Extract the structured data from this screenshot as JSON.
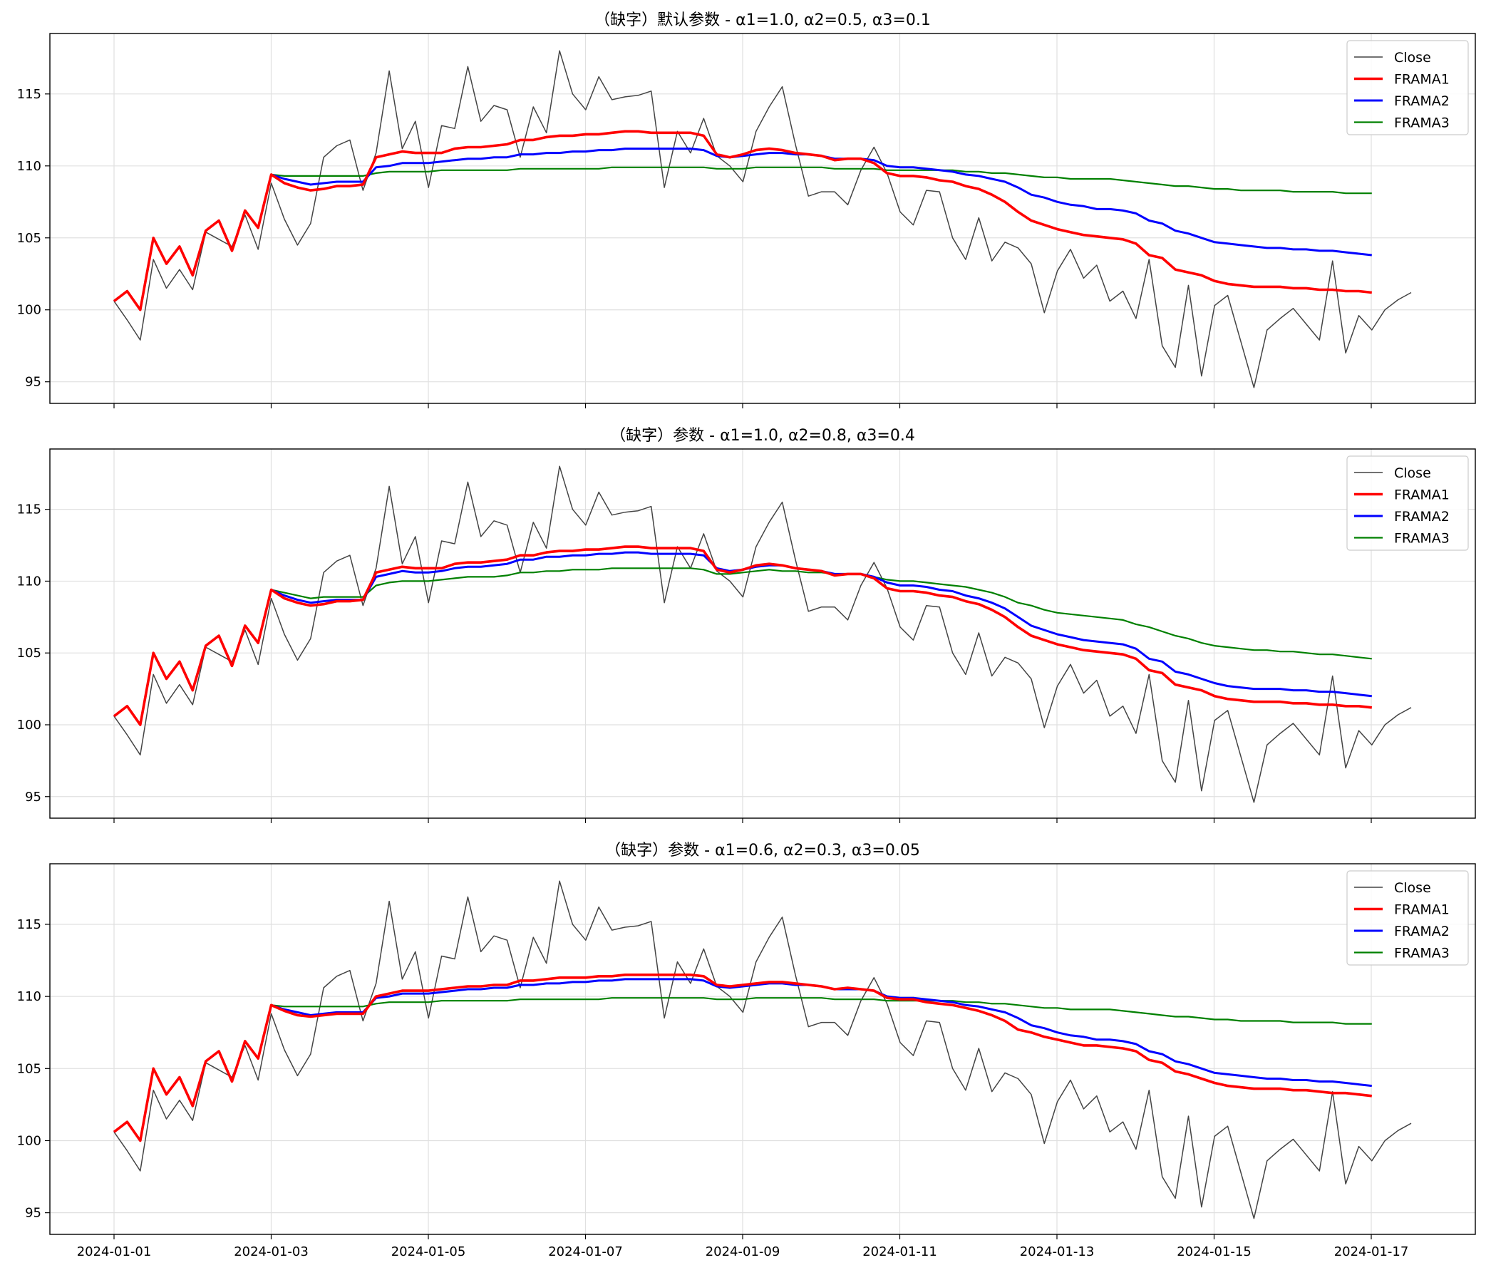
{
  "chart_data": [
    {
      "type": "line",
      "title": "（缺字）默认参数 - α1=1.0, α2=0.5, α3=0.1",
      "x_ticks": [
        "2024-01-01",
        "2024-01-03",
        "2024-01-05",
        "2024-01-07",
        "2024-01-09",
        "2024-01-11",
        "2024-01-13",
        "2024-01-15",
        "2024-01-17"
      ],
      "y_ticks": [
        95,
        100,
        105,
        110,
        115
      ],
      "ylim": [
        93.5,
        119.2
      ],
      "x_range": [
        "2024-01-01 00:00",
        "2024-01-17 12:00"
      ],
      "grid": true,
      "legend_placement": "top-right",
      "series": [
        {
          "name": "Close",
          "color": "#444444"
        },
        {
          "name": "FRAMA1",
          "color": "#ff0000"
        },
        {
          "name": "FRAMA2",
          "color": "#0000ff"
        },
        {
          "name": "FRAMA3",
          "color": "#008000"
        }
      ],
      "frama1_values": [
        100.6,
        101.3,
        100.0,
        105.0,
        103.2,
        104.4,
        102.4,
        105.5,
        106.2,
        104.1,
        106.9,
        105.7,
        109.4,
        108.8,
        108.5,
        108.3,
        108.4,
        108.6,
        108.6,
        108.7,
        110.6,
        110.8,
        111.0,
        110.9,
        110.9,
        110.9,
        111.2,
        111.3,
        111.3,
        111.4,
        111.5,
        111.8,
        111.8,
        112.0,
        112.1,
        112.1,
        112.2,
        112.2,
        112.3,
        112.4,
        112.4,
        112.3,
        112.3,
        112.3,
        112.3,
        112.1,
        110.8,
        110.6,
        110.8,
        111.1,
        111.2,
        111.1,
        110.9,
        110.8,
        110.7,
        110.4,
        110.5,
        110.5,
        110.2,
        109.5,
        109.3,
        109.3,
        109.2,
        109.0,
        108.9,
        108.6,
        108.4,
        108.0,
        107.5,
        106.8,
        106.2,
        105.9,
        105.6,
        105.4,
        105.2,
        105.1,
        105.0,
        104.9,
        104.6,
        103.8,
        103.6,
        102.8,
        102.6,
        102.4,
        102.0,
        101.8,
        101.7,
        101.6,
        101.6,
        101.6,
        101.5,
        101.5,
        101.4,
        101.4,
        101.3,
        101.3,
        101.2
      ]
    },
    {
      "type": "line",
      "title": "（缺字）参数 - α1=1.0, α2=0.8, α3=0.4",
      "x_ticks": [
        "2024-01-01",
        "2024-01-03",
        "2024-01-05",
        "2024-01-07",
        "2024-01-09",
        "2024-01-11",
        "2024-01-13",
        "2024-01-15",
        "2024-01-17"
      ],
      "y_ticks": [
        95,
        100,
        105,
        110,
        115
      ],
      "ylim": [
        93.5,
        119.2
      ],
      "x_range": [
        "2024-01-01 00:00",
        "2024-01-17 12:00"
      ],
      "grid": true,
      "legend_placement": "top-right",
      "series": [
        {
          "name": "Close",
          "color": "#444444"
        },
        {
          "name": "FRAMA1",
          "color": "#ff0000"
        },
        {
          "name": "FRAMA2",
          "color": "#0000ff"
        },
        {
          "name": "FRAMA3",
          "color": "#008000"
        }
      ]
    },
    {
      "type": "line",
      "title": "（缺字）参数 - α1=0.6, α2=0.3, α3=0.05",
      "x_ticks": [
        "2024-01-01",
        "2024-01-03",
        "2024-01-05",
        "2024-01-07",
        "2024-01-09",
        "2024-01-11",
        "2024-01-13",
        "2024-01-15",
        "2024-01-17"
      ],
      "y_ticks": [
        95,
        100,
        105,
        110,
        115
      ],
      "ylim": [
        93.5,
        119.2
      ],
      "x_range": [
        "2024-01-01 00:00",
        "2024-01-17 12:00"
      ],
      "grid": true,
      "legend_placement": "top-right",
      "series": [
        {
          "name": "Close",
          "color": "#444444"
        },
        {
          "name": "FRAMA1",
          "color": "#ff0000"
        },
        {
          "name": "FRAMA2",
          "color": "#0000ff"
        },
        {
          "name": "FRAMA3",
          "color": "#008000"
        }
      ]
    }
  ],
  "close_values": [
    100.6,
    99.3,
    97.9,
    103.5,
    101.5,
    102.8,
    101.4,
    105.4,
    104.9,
    104.4,
    106.6,
    104.2,
    108.8,
    106.3,
    104.5,
    106.0,
    110.6,
    111.4,
    111.8,
    108.3,
    110.9,
    116.6,
    111.2,
    113.1,
    108.5,
    112.8,
    112.6,
    116.9,
    113.1,
    114.2,
    113.9,
    110.6,
    114.1,
    112.3,
    118.0,
    115.0,
    113.9,
    116.2,
    114.6,
    114.8,
    114.9,
    115.2,
    108.5,
    112.4,
    110.9,
    113.3,
    110.7,
    110.0,
    108.9,
    112.4,
    114.1,
    115.5,
    111.5,
    107.9,
    108.2,
    108.2,
    107.3,
    109.7,
    111.3,
    109.5,
    106.8,
    105.9,
    108.3,
    108.2,
    105.0,
    103.5,
    106.4,
    103.4,
    104.7,
    104.3,
    103.2,
    99.8,
    102.7,
    104.2,
    102.2,
    103.1,
    100.6,
    101.3,
    99.4,
    103.5,
    97.5,
    96.0,
    101.7,
    95.4,
    100.3,
    101.0,
    97.8,
    94.6,
    98.6,
    99.4,
    100.1,
    99.0,
    97.9,
    103.4,
    97.0,
    99.6,
    98.6,
    100.0,
    100.7,
    101.2
  ],
  "frama_sets": [
    {
      "frama2": [
        100.6,
        101.3,
        100.0,
        105.0,
        103.2,
        104.4,
        102.4,
        105.5,
        106.2,
        104.1,
        106.9,
        105.7,
        109.4,
        109.1,
        108.9,
        108.7,
        108.8,
        108.9,
        108.9,
        108.9,
        109.9,
        110.0,
        110.2,
        110.2,
        110.2,
        110.3,
        110.4,
        110.5,
        110.5,
        110.6,
        110.6,
        110.8,
        110.8,
        110.9,
        110.9,
        111.0,
        111.0,
        111.1,
        111.1,
        111.2,
        111.2,
        111.2,
        111.2,
        111.2,
        111.2,
        111.1,
        110.7,
        110.6,
        110.7,
        110.8,
        110.9,
        110.9,
        110.8,
        110.8,
        110.7,
        110.5,
        110.5,
        110.5,
        110.4,
        110.0,
        109.9,
        109.9,
        109.8,
        109.7,
        109.6,
        109.4,
        109.3,
        109.1,
        108.9,
        108.5,
        108.0,
        107.8,
        107.5,
        107.3,
        107.2,
        107.0,
        107.0,
        106.9,
        106.7,
        106.2,
        106.0,
        105.5,
        105.3,
        105.0,
        104.7,
        104.6,
        104.5,
        104.4,
        104.3,
        104.3,
        104.2,
        104.2,
        104.1,
        104.1,
        104.0,
        103.9,
        103.8
      ],
      "frama3": [
        100.6,
        101.3,
        100.0,
        105.0,
        103.2,
        104.4,
        102.4,
        105.5,
        106.2,
        104.1,
        106.9,
        105.7,
        109.4,
        109.3,
        109.3,
        109.3,
        109.3,
        109.3,
        109.3,
        109.3,
        109.5,
        109.6,
        109.6,
        109.6,
        109.6,
        109.7,
        109.7,
        109.7,
        109.7,
        109.7,
        109.7,
        109.8,
        109.8,
        109.8,
        109.8,
        109.8,
        109.8,
        109.8,
        109.9,
        109.9,
        109.9,
        109.9,
        109.9,
        109.9,
        109.9,
        109.9,
        109.8,
        109.8,
        109.8,
        109.9,
        109.9,
        109.9,
        109.9,
        109.9,
        109.9,
        109.8,
        109.8,
        109.8,
        109.8,
        109.7,
        109.7,
        109.7,
        109.7,
        109.7,
        109.7,
        109.6,
        109.6,
        109.5,
        109.5,
        109.4,
        109.3,
        109.2,
        109.2,
        109.1,
        109.1,
        109.1,
        109.1,
        109.0,
        108.9,
        108.8,
        108.7,
        108.6,
        108.6,
        108.5,
        108.4,
        108.4,
        108.3,
        108.3,
        108.3,
        108.3,
        108.2,
        108.2,
        108.2,
        108.2,
        108.1,
        108.1,
        108.1
      ]
    },
    {
      "frama1": [
        100.6,
        101.3,
        100.0,
        105.0,
        103.2,
        104.4,
        102.4,
        105.5,
        106.2,
        104.1,
        106.9,
        105.7,
        109.4,
        108.8,
        108.5,
        108.3,
        108.4,
        108.6,
        108.6,
        108.7,
        110.6,
        110.8,
        111.0,
        110.9,
        110.9,
        110.9,
        111.2,
        111.3,
        111.3,
        111.4,
        111.5,
        111.8,
        111.8,
        112.0,
        112.1,
        112.1,
        112.2,
        112.2,
        112.3,
        112.4,
        112.4,
        112.3,
        112.3,
        112.3,
        112.3,
        112.1,
        110.8,
        110.6,
        110.8,
        111.1,
        111.2,
        111.1,
        110.9,
        110.8,
        110.7,
        110.4,
        110.5,
        110.5,
        110.2,
        109.5,
        109.3,
        109.3,
        109.2,
        109.0,
        108.9,
        108.6,
        108.4,
        108.0,
        107.5,
        106.8,
        106.2,
        105.9,
        105.6,
        105.4,
        105.2,
        105.1,
        105.0,
        104.9,
        104.6,
        103.8,
        103.6,
        102.8,
        102.6,
        102.4,
        102.0,
        101.8,
        101.7,
        101.6,
        101.6,
        101.6,
        101.5,
        101.5,
        101.4,
        101.4,
        101.3,
        101.3,
        101.2
      ],
      "frama2": [
        100.6,
        101.3,
        100.0,
        105.0,
        103.2,
        104.4,
        102.4,
        105.5,
        106.2,
        104.1,
        106.9,
        105.7,
        109.4,
        109.0,
        108.7,
        108.5,
        108.6,
        108.7,
        108.7,
        108.7,
        110.3,
        110.5,
        110.7,
        110.6,
        110.6,
        110.7,
        110.9,
        111.0,
        111.0,
        111.1,
        111.2,
        111.5,
        111.5,
        111.7,
        111.7,
        111.8,
        111.8,
        111.9,
        111.9,
        112.0,
        112.0,
        111.9,
        111.9,
        111.9,
        111.9,
        111.8,
        110.9,
        110.7,
        110.8,
        111.0,
        111.1,
        111.1,
        110.9,
        110.8,
        110.7,
        110.5,
        110.5,
        110.5,
        110.3,
        109.9,
        109.7,
        109.7,
        109.6,
        109.4,
        109.3,
        109.0,
        108.8,
        108.5,
        108.1,
        107.5,
        106.9,
        106.6,
        106.3,
        106.1,
        105.9,
        105.8,
        105.7,
        105.6,
        105.3,
        104.6,
        104.4,
        103.7,
        103.5,
        103.2,
        102.9,
        102.7,
        102.6,
        102.5,
        102.5,
        102.5,
        102.4,
        102.4,
        102.3,
        102.3,
        102.2,
        102.1,
        102.0
      ],
      "frama3": [
        100.6,
        101.3,
        100.0,
        105.0,
        103.2,
        104.4,
        102.4,
        105.5,
        106.2,
        104.1,
        106.9,
        105.7,
        109.4,
        109.2,
        109.0,
        108.8,
        108.9,
        108.9,
        108.9,
        108.9,
        109.7,
        109.9,
        110.0,
        110.0,
        110.0,
        110.1,
        110.2,
        110.3,
        110.3,
        110.3,
        110.4,
        110.6,
        110.6,
        110.7,
        110.7,
        110.8,
        110.8,
        110.8,
        110.9,
        110.9,
        110.9,
        110.9,
        110.9,
        110.9,
        110.9,
        110.8,
        110.5,
        110.5,
        110.6,
        110.7,
        110.8,
        110.7,
        110.7,
        110.6,
        110.6,
        110.5,
        110.5,
        110.5,
        110.3,
        110.1,
        110.0,
        110.0,
        109.9,
        109.8,
        109.7,
        109.6,
        109.4,
        109.2,
        108.9,
        108.5,
        108.3,
        108.0,
        107.8,
        107.7,
        107.6,
        107.5,
        107.4,
        107.3,
        107.0,
        106.8,
        106.5,
        106.2,
        106.0,
        105.7,
        105.5,
        105.4,
        105.3,
        105.2,
        105.2,
        105.1,
        105.1,
        105.0,
        104.9,
        104.9,
        104.8,
        104.7,
        104.6
      ]
    },
    {
      "frama1": [
        100.6,
        101.3,
        100.0,
        105.0,
        103.2,
        104.4,
        102.4,
        105.5,
        106.2,
        104.1,
        106.9,
        105.7,
        109.4,
        109.0,
        108.7,
        108.6,
        108.7,
        108.8,
        108.8,
        108.8,
        110.0,
        110.2,
        110.4,
        110.4,
        110.4,
        110.5,
        110.6,
        110.7,
        110.7,
        110.8,
        110.8,
        111.1,
        111.1,
        111.2,
        111.3,
        111.3,
        111.3,
        111.4,
        111.4,
        111.5,
        111.5,
        111.5,
        111.5,
        111.5,
        111.5,
        111.4,
        110.8,
        110.7,
        110.8,
        110.9,
        111.0,
        111.0,
        110.9,
        110.8,
        110.7,
        110.5,
        110.6,
        110.5,
        110.4,
        109.9,
        109.8,
        109.8,
        109.6,
        109.5,
        109.4,
        109.2,
        109.0,
        108.7,
        108.3,
        107.7,
        107.5,
        107.2,
        107.0,
        106.8,
        106.6,
        106.6,
        106.5,
        106.4,
        106.2,
        105.6,
        105.4,
        104.8,
        104.6,
        104.3,
        104.0,
        103.8,
        103.7,
        103.6,
        103.6,
        103.6,
        103.5,
        103.5,
        103.4,
        103.3,
        103.3,
        103.2,
        103.1
      ]
    }
  ]
}
